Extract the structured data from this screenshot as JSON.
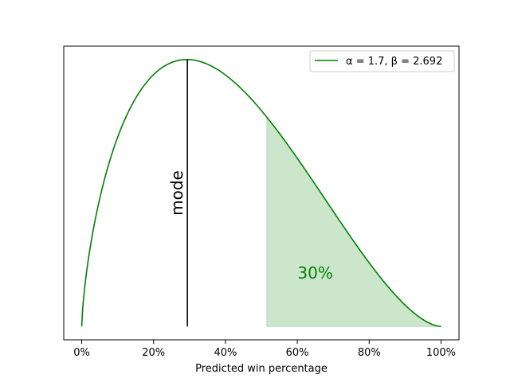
{
  "chart_data": {
    "type": "line",
    "xlabel": "Predicted win percentage",
    "ylabel": "",
    "xlim": [
      -5,
      105
    ],
    "xticks": [
      0,
      20,
      40,
      60,
      80,
      100
    ],
    "xtick_labels": [
      "0%",
      "20%",
      "40%",
      "60%",
      "80%",
      "100%"
    ],
    "yticks_shown": false,
    "grid": false,
    "legend_position": "top-right",
    "distribution": {
      "alpha": 1.7,
      "beta": 2.692
    },
    "series": [
      {
        "name": "α = 1.7, β = 2.692",
        "color": "#008000"
      }
    ],
    "annotations": {
      "mode_label": "mode",
      "mode_x": 29.4,
      "shaded_from_x": 51.5,
      "shaded_to_x": 100,
      "shaded_color": "#008000",
      "shaded_label": "30%",
      "shaded_label_x": 65,
      "shaded_label_y_fraction": 0.2
    }
  }
}
